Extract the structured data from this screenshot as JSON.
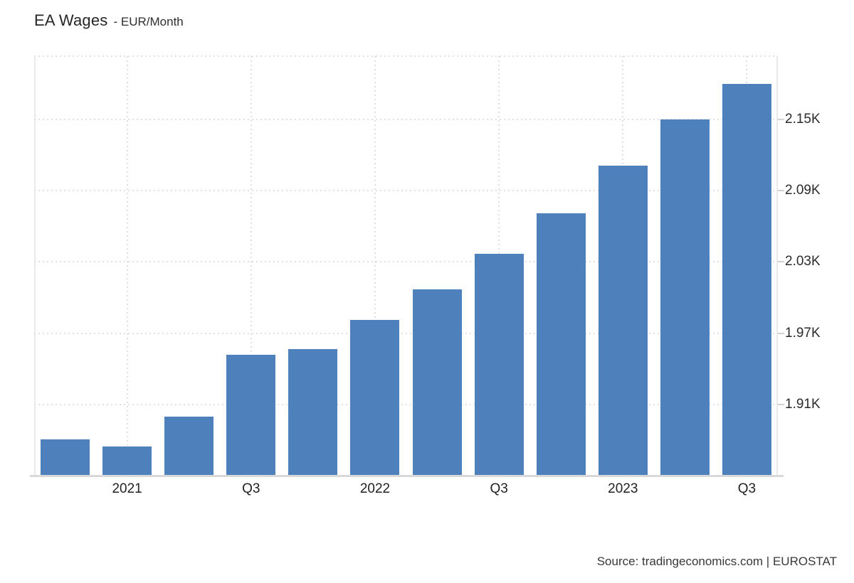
{
  "header": {
    "title": "EA Wages",
    "subtitle": "- EUR/Month"
  },
  "footer": {
    "source": "Source: tradingeconomics.com | EUROSTAT"
  },
  "chart_data": {
    "type": "bar",
    "title": "EA Wages",
    "subtitle": "- EUR/Month",
    "unit": "EUR/Month",
    "categories": [
      "2020-Q4",
      "2021-Q1",
      "2021-Q2",
      "2021-Q3",
      "2021-Q4",
      "2022-Q1",
      "2022-Q2",
      "2022-Q3",
      "2022-Q4",
      "2023-Q1",
      "2023-Q2",
      "2023-Q3"
    ],
    "values": [
      1881,
      1875,
      1900,
      1952,
      1957,
      1981,
      2007,
      2037,
      2071,
      2111,
      2150,
      2180
    ],
    "xticks": [
      {
        "bar": 1,
        "label": "2021"
      },
      {
        "bar": 3,
        "label": "Q3"
      },
      {
        "bar": 5,
        "label": "2022"
      },
      {
        "bar": 7,
        "label": "Q3"
      },
      {
        "bar": 9,
        "label": "2023"
      },
      {
        "bar": 11,
        "label": "Q3"
      }
    ],
    "yticks": [
      {
        "value": 2150,
        "label": "2.15K"
      },
      {
        "value": 2090,
        "label": "2.09K"
      },
      {
        "value": 2030,
        "label": "2.03K"
      },
      {
        "value": 1970,
        "label": "1.97K"
      },
      {
        "value": 1910,
        "label": "1.91K"
      }
    ],
    "ylim": [
      1851,
      2203
    ],
    "grid": true,
    "legend_position": "none",
    "colors": {
      "bar": "#4e81bc",
      "grid": "#e0e0e0",
      "plot_border": "#e9e9e9",
      "axis_line": "#d9d9d9",
      "tick": "#d2d2d2"
    },
    "source": "Source: tradingeconomics.com | EUROSTAT"
  }
}
